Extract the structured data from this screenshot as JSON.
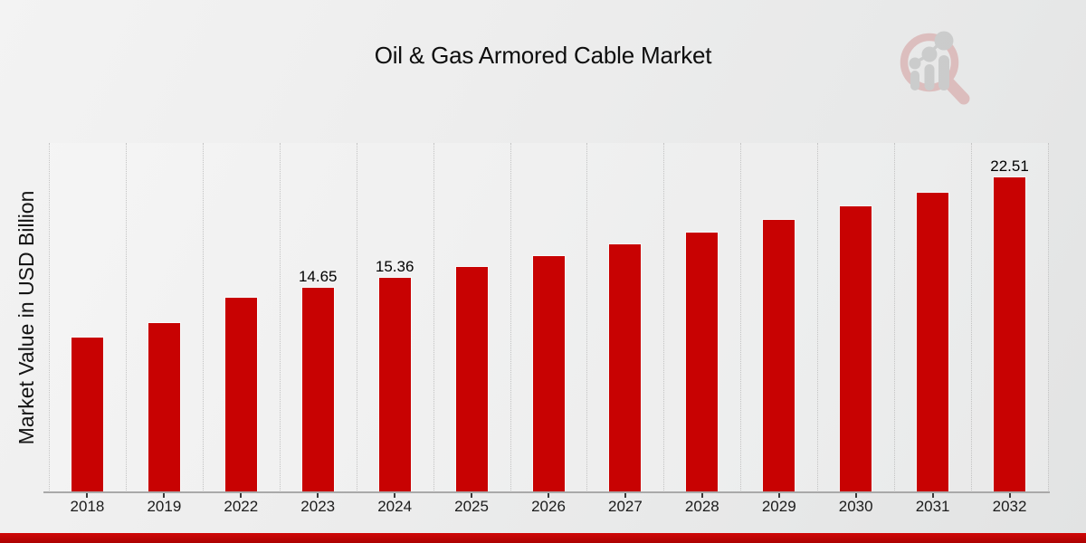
{
  "chart_data": {
    "type": "bar",
    "title": "Oil & Gas Armored Cable Market",
    "ylabel": "Market Value in USD Billion",
    "xlabel": "",
    "categories": [
      "2018",
      "2019",
      "2022",
      "2023",
      "2024",
      "2025",
      "2026",
      "2027",
      "2028",
      "2029",
      "2030",
      "2031",
      "2032"
    ],
    "values": [
      11.05,
      12.1,
      13.9,
      14.65,
      15.36,
      16.11,
      16.9,
      17.72,
      18.59,
      19.5,
      20.45,
      21.45,
      22.51
    ],
    "bar_labels": [
      "",
      "",
      "",
      "14.65",
      "15.36",
      "",
      "",
      "",
      "",
      "",
      "",
      "",
      "22.51"
    ],
    "ylim": [
      0,
      25
    ],
    "grid": "vertical-dotted",
    "legend": "none",
    "colors": {
      "bar": "#c80202",
      "bar_edge": "rgba(255,255,255,0.55)",
      "gridline": "#c3c3c3",
      "axis_line": "#a9a9a9",
      "tick": "#3a3a3a",
      "label_text": "#000000",
      "banner_top": "#d00707",
      "banner_bottom": "#ab0202"
    }
  },
  "branding": {
    "logo_name": "magnifier-growth-chart-watermark"
  }
}
